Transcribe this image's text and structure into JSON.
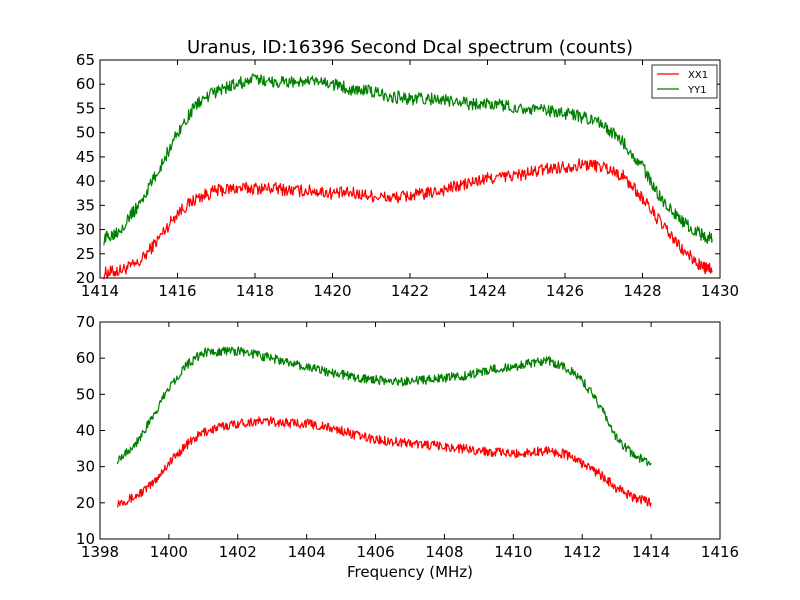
{
  "figure": {
    "title": "Uranus, ID:16396 Second Dcal spectrum (counts)",
    "xlabel": "Frequency (MHz)"
  },
  "colors": {
    "XX1": "#ff0000",
    "YY1": "#008000"
  },
  "chart_data": [
    {
      "type": "line",
      "title": "Uranus, ID:16396 Second Dcal spectrum (counts)",
      "xlabel": "",
      "ylabel": "",
      "xlim": [
        1414,
        1430
      ],
      "ylim": [
        20,
        65
      ],
      "xticks": [
        "1414",
        "1416",
        "1418",
        "1420",
        "1422",
        "1424",
        "1426",
        "1428",
        "1430"
      ],
      "yticks": [
        "20",
        "25",
        "30",
        "35",
        "40",
        "45",
        "50",
        "55",
        "60",
        "65"
      ],
      "grid": false,
      "legend": {
        "placement": "top-right",
        "entries": [
          "XX1",
          "YY1"
        ]
      },
      "series": [
        {
          "name": "XX1",
          "color": "#ff0000",
          "x": [
            1414.1,
            1414.5,
            1415.0,
            1415.5,
            1416.0,
            1416.5,
            1417.0,
            1417.5,
            1418.0,
            1418.5,
            1419.0,
            1419.5,
            1420.0,
            1420.5,
            1421.0,
            1421.5,
            1422.0,
            1422.5,
            1423.0,
            1423.5,
            1424.0,
            1424.5,
            1425.0,
            1425.5,
            1426.0,
            1426.5,
            1427.0,
            1427.5,
            1428.0,
            1428.5,
            1429.0,
            1429.5,
            1429.8
          ],
          "y": [
            21,
            21.5,
            23,
            28,
            33.5,
            36.5,
            38,
            38.5,
            38.5,
            38.5,
            38,
            38,
            37.5,
            37.5,
            37,
            36.5,
            37,
            37.5,
            38.5,
            39.5,
            40.5,
            41,
            41.5,
            42.5,
            43,
            43.5,
            43,
            41,
            36.5,
            31,
            26,
            22.5,
            21.5
          ]
        },
        {
          "name": "YY1",
          "color": "#008000",
          "x": [
            1414.1,
            1414.5,
            1415.0,
            1415.5,
            1416.0,
            1416.5,
            1417.0,
            1417.5,
            1418.0,
            1418.5,
            1419.0,
            1419.5,
            1420.0,
            1420.5,
            1421.0,
            1421.5,
            1422.0,
            1422.5,
            1423.0,
            1423.5,
            1424.0,
            1424.5,
            1425.0,
            1425.5,
            1426.0,
            1426.5,
            1427.0,
            1427.5,
            1428.0,
            1428.5,
            1429.0,
            1429.5,
            1429.8
          ],
          "y": [
            28,
            30,
            35,
            42,
            50,
            56,
            58.5,
            60,
            61,
            60.5,
            60.5,
            60.5,
            60,
            59,
            58.5,
            57.5,
            57,
            57,
            56.5,
            56,
            56,
            55.5,
            55,
            54.5,
            54,
            53,
            51.5,
            48,
            43,
            36,
            32,
            29,
            28
          ]
        }
      ]
    },
    {
      "type": "line",
      "title": "",
      "xlabel": "Frequency (MHz)",
      "ylabel": "",
      "xlim": [
        1398,
        1416
      ],
      "ylim": [
        10,
        70
      ],
      "xticks": [
        "1398",
        "1400",
        "1402",
        "1404",
        "1406",
        "1408",
        "1410",
        "1412",
        "1414",
        "1416"
      ],
      "yticks": [
        "10",
        "20",
        "30",
        "40",
        "50",
        "60",
        "70"
      ],
      "grid": false,
      "series": [
        {
          "name": "XX1",
          "color": "#ff0000",
          "x": [
            1398.5,
            1399.0,
            1399.5,
            1400.0,
            1400.5,
            1401.0,
            1401.5,
            1402.0,
            1402.5,
            1403.0,
            1403.5,
            1404.0,
            1404.5,
            1405.0,
            1405.5,
            1406.0,
            1406.5,
            1407.0,
            1407.5,
            1408.0,
            1408.5,
            1409.0,
            1409.5,
            1410.0,
            1410.5,
            1411.0,
            1411.5,
            1412.0,
            1412.5,
            1413.0,
            1413.5,
            1414.0
          ],
          "y": [
            20,
            21.5,
            25,
            31,
            36,
            39.5,
            41,
            42,
            42.5,
            42.5,
            42,
            42,
            41,
            40,
            38.5,
            37.5,
            37,
            36.5,
            36,
            35.5,
            35,
            34.5,
            34,
            33.5,
            34,
            34.5,
            33.5,
            31,
            28,
            24,
            21.5,
            20
          ]
        },
        {
          "name": "YY1",
          "color": "#008000",
          "x": [
            1398.5,
            1399.0,
            1399.5,
            1400.0,
            1400.5,
            1401.0,
            1401.5,
            1402.0,
            1402.5,
            1403.0,
            1403.5,
            1404.0,
            1404.5,
            1405.0,
            1405.5,
            1406.0,
            1406.5,
            1407.0,
            1407.5,
            1408.0,
            1408.5,
            1409.0,
            1409.5,
            1410.0,
            1410.5,
            1411.0,
            1411.5,
            1412.0,
            1412.5,
            1413.0,
            1413.5,
            1414.0
          ],
          "y": [
            32,
            36,
            43,
            52,
            58,
            61.5,
            62,
            62,
            61,
            60,
            58.5,
            57.5,
            56.5,
            55.5,
            54.5,
            54,
            53.5,
            53.5,
            54,
            54.5,
            55,
            56,
            57,
            57.5,
            58.5,
            59.5,
            57.5,
            54,
            47,
            38,
            33,
            31
          ]
        }
      ]
    }
  ]
}
